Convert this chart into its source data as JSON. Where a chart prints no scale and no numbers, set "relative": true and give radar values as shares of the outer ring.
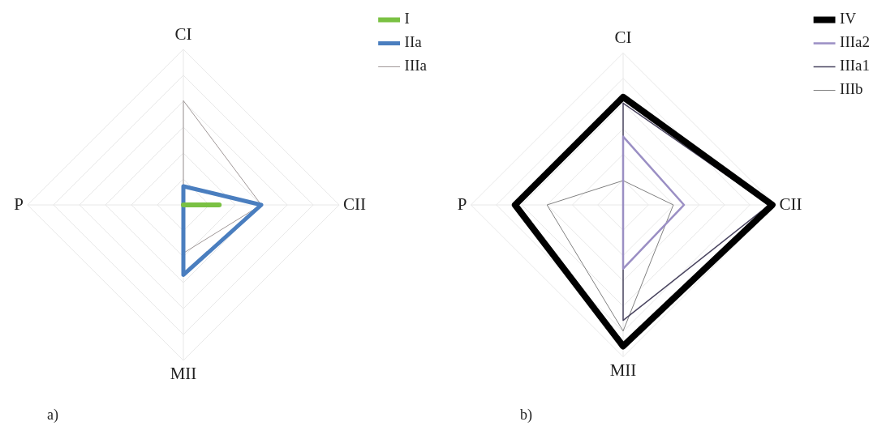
{
  "chart_data": [
    {
      "type": "radar",
      "relative": true,
      "categories": [
        "CI",
        "CII",
        "MII",
        "P"
      ],
      "legend": "top right",
      "grid": true,
      "marker": "none",
      "annotations": [
        "a)"
      ],
      "series": [
        {
          "name": "I",
          "color": "#7ac143",
          "values": [
            0,
            0.23,
            0,
            0
          ]
        },
        {
          "name": "IIa",
          "color": "#4a7ebf",
          "values": [
            0.12,
            0.5,
            0.45,
            0
          ]
        },
        {
          "name": "IIIa",
          "color": "#a09898",
          "values": [
            0.67,
            0.5,
            0.31,
            0
          ]
        }
      ]
    },
    {
      "type": "radar",
      "relative": true,
      "categories": [
        "CI",
        "CII",
        "MII",
        "P"
      ],
      "legend": "top right",
      "grid": true,
      "marker": "none",
      "annotations": [
        "b)"
      ],
      "series": [
        {
          "name": "IV",
          "color": "#000000",
          "values": [
            0.71,
            0.98,
            0.93,
            0.71
          ]
        },
        {
          "name": "IIIa2",
          "color": "#9b8fc4",
          "values": [
            0.45,
            0.4,
            0.42,
            0
          ]
        },
        {
          "name": "IIIa1",
          "color": "#4a4560",
          "values": [
            0.67,
            0.96,
            0.76,
            0
          ]
        },
        {
          "name": "IIIb",
          "color": "#808080",
          "values": [
            0.16,
            0.33,
            0.83,
            0.5
          ]
        }
      ]
    }
  ]
}
